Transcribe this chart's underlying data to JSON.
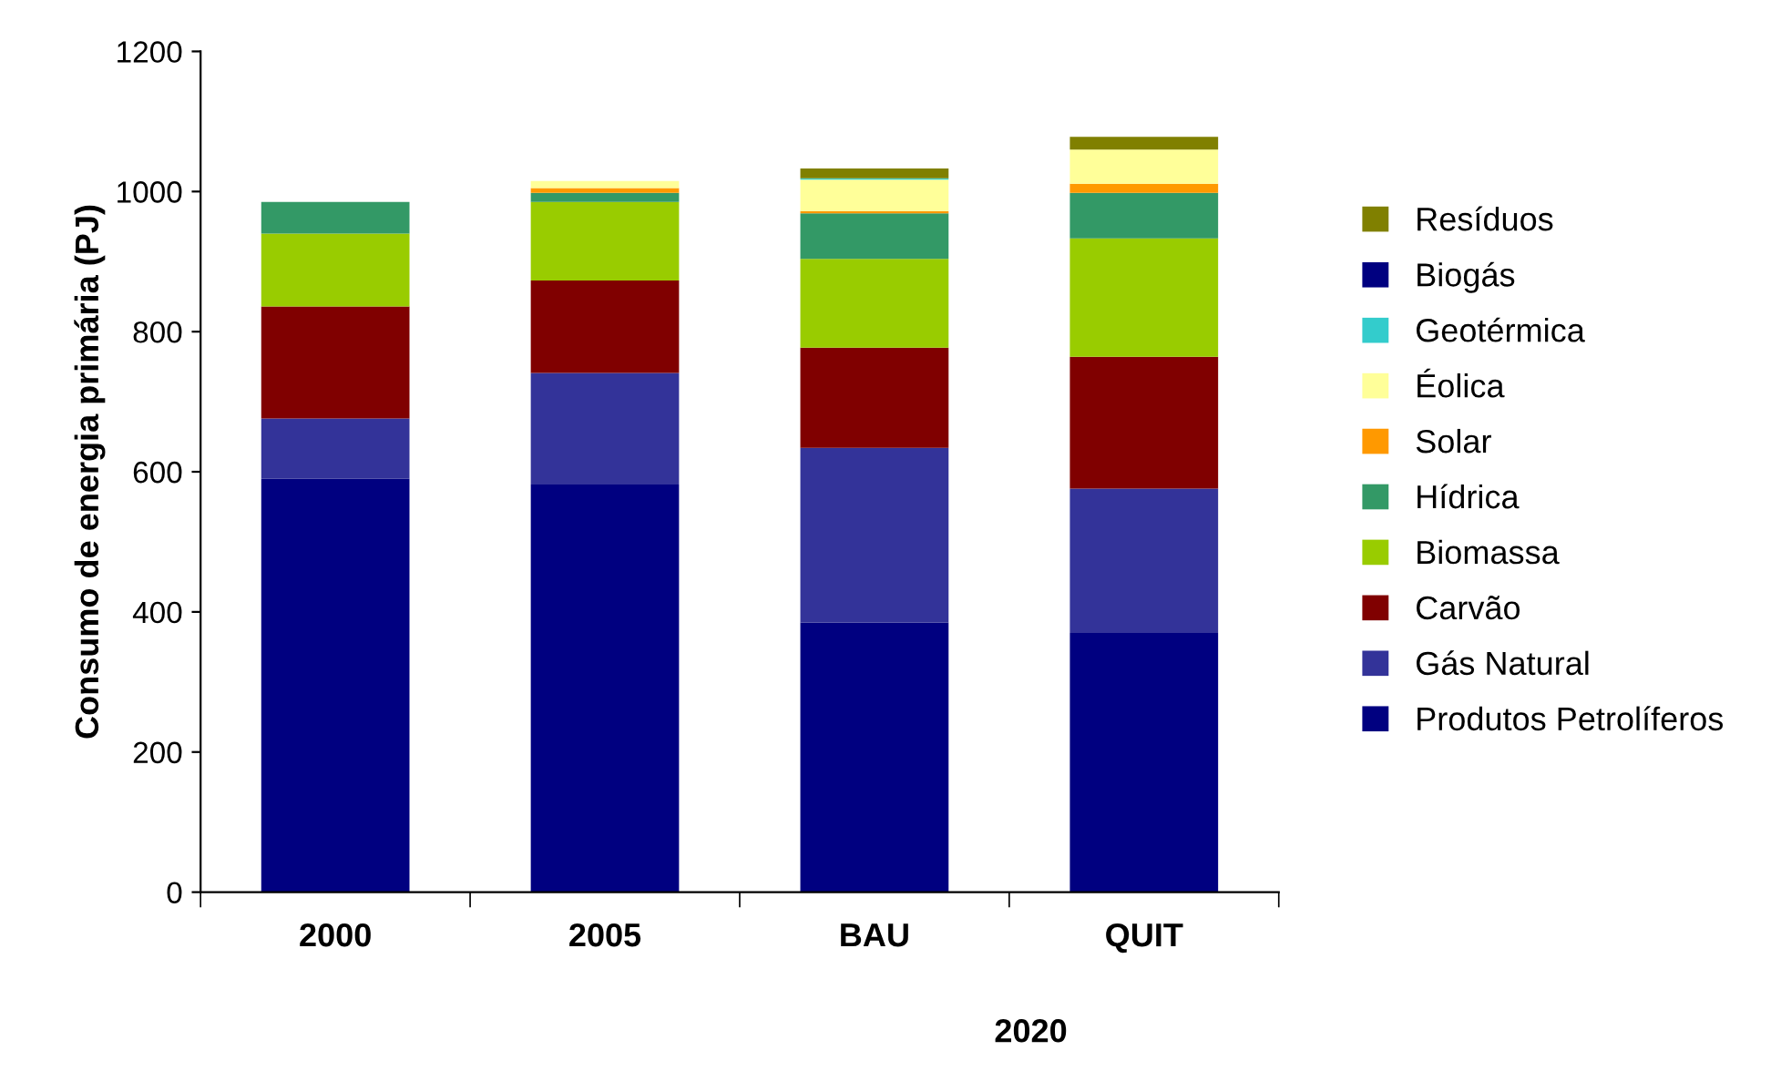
{
  "chart_data": {
    "type": "bar",
    "stacked": true,
    "ylabel": "Consumo de energia primária (PJ)",
    "xlabel": "2020",
    "categories": [
      "2000",
      "2005",
      "BAU",
      "QUIT"
    ],
    "series": [
      {
        "name": "Produtos Petrolíferos",
        "color": "#000080",
        "values": [
          590,
          582,
          385,
          370
        ]
      },
      {
        "name": "Gás Natural",
        "color": "#333399",
        "values": [
          86,
          159,
          249,
          206
        ]
      },
      {
        "name": "Carvão",
        "color": "#800000",
        "values": [
          160,
          132,
          143,
          188
        ]
      },
      {
        "name": "Biomassa",
        "color": "#99cc00",
        "values": [
          104,
          112,
          127,
          169
        ]
      },
      {
        "name": "Hídrica",
        "color": "#339966",
        "values": [
          45,
          13,
          65,
          65
        ]
      },
      {
        "name": "Solar",
        "color": "#ff9900",
        "values": [
          0,
          7,
          3,
          13
        ]
      },
      {
        "name": "Éolica",
        "color": "#ffff99",
        "values": [
          0,
          10,
          45,
          49
        ]
      },
      {
        "name": "Geotérmica",
        "color": "#33cccc",
        "values": [
          0,
          0,
          2,
          0
        ]
      },
      {
        "name": "Biogás",
        "color": "#000080",
        "values": [
          0,
          0,
          0,
          0
        ]
      },
      {
        "name": "Resíduos",
        "color": "#808000",
        "values": [
          0,
          0,
          14,
          18
        ]
      }
    ],
    "ylim": [
      0,
      1200
    ],
    "yticks": [
      0,
      200,
      400,
      600,
      800,
      1000,
      1200
    ],
    "grid": false,
    "legend": "right"
  }
}
